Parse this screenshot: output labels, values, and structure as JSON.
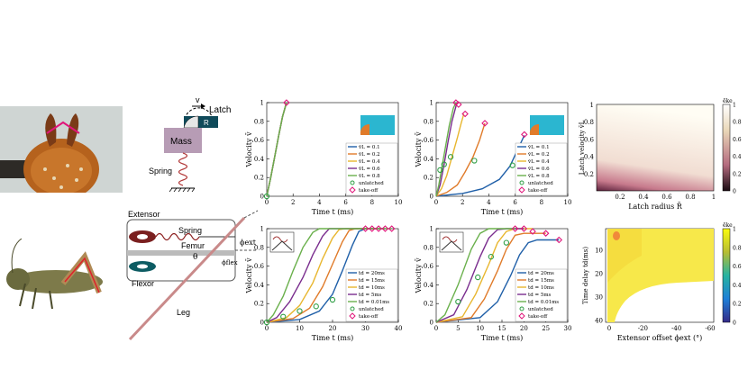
{
  "schematic_top": {
    "latch_label": "Latch",
    "v_label": "v",
    "r_label": "R",
    "mass_label": "Mass",
    "spring_label": "Spring"
  },
  "schematic_bottom": {
    "extensor_label": "Extensor",
    "spring_label": "Spring",
    "femur_label": "Femur",
    "flexor_label": "Flexor",
    "leg_label": "Leg",
    "theta_label": "θ",
    "phi_ext_label": "ϕext",
    "phi_flex_label": "ϕflex"
  },
  "colors": {
    "blue": "#1f5fa8",
    "orange": "#e07b2a",
    "yellow": "#e8b62e",
    "purple": "#7a2d8e",
    "green": "#6ab04c",
    "marker_green": "#2e9e44",
    "marker_pink": "#e0167a",
    "cyan": "#2bb6d0"
  },
  "chart_data": [
    {
      "id": "top1",
      "type": "line",
      "ylabel": "Velocity v̄",
      "xlabel": "Time t (ms)",
      "xlim": [
        0,
        10
      ],
      "ylim": [
        0,
        1
      ],
      "xticks": [
        "0",
        "2",
        "4",
        "6",
        "8",
        "10"
      ],
      "yticks": [
        "0",
        "0.2",
        "0.4",
        "0.6",
        "0.8",
        "1"
      ],
      "series": [
        {
          "name": "v̄L = 0.1",
          "color": "#1f5fa8",
          "points": [
            [
              0,
              0
            ],
            [
              0.3,
              0.2
            ],
            [
              0.6,
              0.42
            ],
            [
              0.9,
              0.64
            ],
            [
              1.2,
              0.85
            ],
            [
              1.5,
              1
            ]
          ]
        },
        {
          "name": "v̄L = 0.2",
          "color": "#e07b2a",
          "points": [
            [
              0,
              0
            ],
            [
              0.3,
              0.2
            ],
            [
              0.6,
              0.42
            ],
            [
              0.9,
              0.64
            ],
            [
              1.2,
              0.85
            ],
            [
              1.5,
              1
            ]
          ]
        },
        {
          "name": "v̄L = 0.4",
          "color": "#e8b62e",
          "points": [
            [
              0,
              0
            ],
            [
              0.3,
              0.2
            ],
            [
              0.6,
              0.42
            ],
            [
              0.9,
              0.64
            ],
            [
              1.2,
              0.85
            ],
            [
              1.5,
              1
            ]
          ]
        },
        {
          "name": "v̄L = 0.6",
          "color": "#7a2d8e",
          "points": [
            [
              0,
              0
            ],
            [
              0.3,
              0.2
            ],
            [
              0.6,
              0.42
            ],
            [
              0.9,
              0.64
            ],
            [
              1.2,
              0.85
            ],
            [
              1.5,
              1
            ]
          ]
        },
        {
          "name": "v̄L = 0.8",
          "color": "#6ab04c",
          "points": [
            [
              0,
              0
            ],
            [
              0.3,
              0.2
            ],
            [
              0.6,
              0.42
            ],
            [
              0.9,
              0.64
            ],
            [
              1.2,
              0.85
            ],
            [
              1.5,
              1
            ]
          ]
        }
      ],
      "unlatched": [
        [
          0,
          0
        ]
      ],
      "takeoff": [
        [
          1.5,
          1
        ]
      ],
      "legend_extra": [
        "unlatched",
        "take-off"
      ]
    },
    {
      "id": "top2",
      "type": "line",
      "ylabel": "Velocity v̄",
      "xlabel": "Time t (ms)",
      "xlim": [
        0,
        10
      ],
      "ylim": [
        0,
        1
      ],
      "xticks": [
        "0",
        "2",
        "4",
        "6",
        "8",
        "10"
      ],
      "yticks": [
        "0",
        "0.2",
        "0.4",
        "0.6",
        "0.8",
        "1"
      ],
      "series": [
        {
          "name": "v̄L = 0.1",
          "color": "#1f5fa8",
          "points": [
            [
              0,
              0
            ],
            [
              2,
              0.03
            ],
            [
              3.5,
              0.08
            ],
            [
              4.8,
              0.18
            ],
            [
              5.6,
              0.32
            ],
            [
              6.2,
              0.5
            ],
            [
              6.7,
              0.65
            ]
          ]
        },
        {
          "name": "v̄L = 0.2",
          "color": "#e07b2a",
          "points": [
            [
              0,
              0
            ],
            [
              0.8,
              0.04
            ],
            [
              1.6,
              0.12
            ],
            [
              2.2,
              0.26
            ],
            [
              2.8,
              0.42
            ],
            [
              3.3,
              0.6
            ],
            [
              3.7,
              0.78
            ]
          ]
        },
        {
          "name": "v̄L = 0.4",
          "color": "#e8b62e",
          "points": [
            [
              0,
              0
            ],
            [
              0.4,
              0.08
            ],
            [
              0.8,
              0.22
            ],
            [
              1.2,
              0.42
            ],
            [
              1.6,
              0.62
            ],
            [
              1.9,
              0.78
            ],
            [
              2.1,
              0.88
            ]
          ]
        },
        {
          "name": "v̄L = 0.6",
          "color": "#7a2d8e",
          "points": [
            [
              0,
              0
            ],
            [
              0.3,
              0.12
            ],
            [
              0.6,
              0.34
            ],
            [
              0.9,
              0.58
            ],
            [
              1.2,
              0.8
            ],
            [
              1.5,
              0.96
            ],
            [
              1.6,
              1
            ]
          ]
        },
        {
          "name": "v̄L = 0.8",
          "color": "#6ab04c",
          "points": [
            [
              0,
              0
            ],
            [
              0.2,
              0.12
            ],
            [
              0.4,
              0.28
            ],
            [
              0.7,
              0.52
            ],
            [
              1,
              0.76
            ],
            [
              1.3,
              0.94
            ],
            [
              1.5,
              1
            ]
          ]
        }
      ],
      "unlatched": [
        [
          0.3,
          0.28
        ],
        [
          0.6,
          0.34
        ],
        [
          1.1,
          0.42
        ],
        [
          2.9,
          0.38
        ],
        [
          5.8,
          0.33
        ]
      ],
      "takeoff": [
        [
          1.5,
          1
        ],
        [
          1.7,
          0.98
        ],
        [
          2.2,
          0.88
        ],
        [
          3.7,
          0.78
        ],
        [
          6.7,
          0.66
        ]
      ],
      "legend_extra": [
        "unlatched",
        "take-off"
      ]
    },
    {
      "id": "bot1",
      "type": "line",
      "ylabel": "Velocity v̄",
      "xlabel": "Time t (ms)",
      "xlim": [
        0,
        40
      ],
      "ylim": [
        0,
        1
      ],
      "xticks": [
        "0",
        "10",
        "20",
        "30",
        "40"
      ],
      "yticks": [
        "0",
        "0.2",
        "0.4",
        "0.6",
        "0.8",
        "1"
      ],
      "series": [
        {
          "name": "td = 20ms",
          "color": "#1f5fa8",
          "points": [
            [
              0,
              0
            ],
            [
              10,
              0.03
            ],
            [
              16,
              0.12
            ],
            [
              20,
              0.3
            ],
            [
              23,
              0.55
            ],
            [
              26,
              0.82
            ],
            [
              28,
              0.97
            ],
            [
              30,
              1
            ],
            [
              32,
              1
            ]
          ]
        },
        {
          "name": "td = 15ms",
          "color": "#e07b2a",
          "points": [
            [
              0,
              0
            ],
            [
              8,
              0.04
            ],
            [
              13,
              0.15
            ],
            [
              17,
              0.38
            ],
            [
              20,
              0.62
            ],
            [
              23,
              0.86
            ],
            [
              25,
              0.98
            ],
            [
              27,
              1
            ],
            [
              33,
              1
            ]
          ]
        },
        {
          "name": "td = 10ms",
          "color": "#e8b62e",
          "points": [
            [
              0,
              0
            ],
            [
              6,
              0.05
            ],
            [
              10,
              0.18
            ],
            [
              14,
              0.42
            ],
            [
              17,
              0.68
            ],
            [
              20,
              0.9
            ],
            [
              22,
              0.99
            ],
            [
              24,
              1
            ],
            [
              35,
              1
            ]
          ]
        },
        {
          "name": "td = 5ms",
          "color": "#7a2d8e",
          "points": [
            [
              0,
              0
            ],
            [
              3,
              0.05
            ],
            [
              7,
              0.22
            ],
            [
              11,
              0.48
            ],
            [
              14,
              0.72
            ],
            [
              17,
              0.92
            ],
            [
              19,
              1
            ],
            [
              21,
              1
            ],
            [
              36,
              1
            ]
          ]
        },
        {
          "name": "td = 0.01ms",
          "color": "#6ab04c",
          "points": [
            [
              0,
              0
            ],
            [
              2,
              0.08
            ],
            [
              5,
              0.28
            ],
            [
              8,
              0.55
            ],
            [
              11,
              0.8
            ],
            [
              14,
              0.96
            ],
            [
              16,
              1
            ],
            [
              38,
              1
            ]
          ]
        }
      ],
      "unlatched": [
        [
          0,
          0
        ],
        [
          5,
          0.06
        ],
        [
          10,
          0.12
        ],
        [
          15,
          0.17
        ],
        [
          20,
          0.24
        ]
      ],
      "takeoff": [
        [
          30,
          1
        ],
        [
          32,
          1
        ],
        [
          34,
          1
        ],
        [
          36,
          1
        ],
        [
          38,
          1
        ]
      ],
      "legend_extra": [
        "unlatched",
        "take-off"
      ]
    },
    {
      "id": "bot2",
      "type": "line",
      "ylabel": "Velocity v̄",
      "xlabel": "Time t (ms)",
      "xlim": [
        0,
        30
      ],
      "ylim": [
        0,
        1
      ],
      "xticks": [
        "0",
        "5",
        "10",
        "15",
        "20",
        "25",
        "30"
      ],
      "yticks": [
        "0",
        "0.2",
        "0.4",
        "0.6",
        "0.8",
        "1"
      ],
      "series": [
        {
          "name": "td = 20ms",
          "color": "#1f5fa8",
          "points": [
            [
              0,
              0
            ],
            [
              10,
              0.05
            ],
            [
              14,
              0.22
            ],
            [
              17,
              0.5
            ],
            [
              19,
              0.72
            ],
            [
              21,
              0.85
            ],
            [
              23,
              0.88
            ],
            [
              28,
              0.88
            ]
          ]
        },
        {
          "name": "td = 15ms",
          "color": "#e07b2a",
          "points": [
            [
              0,
              0
            ],
            [
              8,
              0.05
            ],
            [
              11,
              0.25
            ],
            [
              14,
              0.55
            ],
            [
              16,
              0.78
            ],
            [
              18,
              0.93
            ],
            [
              20,
              0.95
            ],
            [
              25,
              0.95
            ]
          ]
        },
        {
          "name": "td = 10ms",
          "color": "#e8b62e",
          "points": [
            [
              0,
              0
            ],
            [
              6,
              0.06
            ],
            [
              9,
              0.3
            ],
            [
              12,
              0.62
            ],
            [
              14,
              0.85
            ],
            [
              16,
              0.97
            ],
            [
              18,
              1
            ],
            [
              22,
              1
            ]
          ]
        },
        {
          "name": "td = 5ms",
          "color": "#7a2d8e",
          "points": [
            [
              0,
              0
            ],
            [
              4,
              0.08
            ],
            [
              7,
              0.35
            ],
            [
              10,
              0.7
            ],
            [
              12,
              0.9
            ],
            [
              14,
              0.99
            ],
            [
              16,
              1
            ],
            [
              20,
              1
            ]
          ]
        },
        {
          "name": "td = 0.01ms",
          "color": "#6ab04c",
          "points": [
            [
              0,
              0
            ],
            [
              2,
              0.08
            ],
            [
              5,
              0.4
            ],
            [
              8,
              0.78
            ],
            [
              10,
              0.95
            ],
            [
              12,
              1
            ],
            [
              18,
              1
            ]
          ]
        }
      ],
      "unlatched": [
        [
          5,
          0.22
        ],
        [
          9.5,
          0.48
        ],
        [
          12.5,
          0.7
        ],
        [
          16,
          0.85
        ]
      ],
      "takeoff": [
        [
          18,
          1
        ],
        [
          20,
          1
        ],
        [
          22,
          0.97
        ],
        [
          25,
          0.95
        ],
        [
          28,
          0.88
        ]
      ],
      "legend_extra": [
        "unlatched",
        "take-off"
      ]
    },
    {
      "id": "heat1",
      "type": "heatmap",
      "ylabel": "Latch velocity v̄L",
      "xlabel": "Latch radius R̄",
      "colorbar_label": "ēke",
      "xticks": [
        "0.2",
        "0.4",
        "0.6",
        "0.8",
        "1"
      ],
      "yticks": [
        "0.2",
        "0.4",
        "0.6",
        "0.8",
        "1"
      ],
      "colorbar_ticks": [
        "0",
        "0.2",
        "0.4",
        "0.6",
        "0.8",
        "1"
      ],
      "colormap": "pink-to-white"
    },
    {
      "id": "heat2",
      "type": "heatmap",
      "ylabel": "Time delay td(ms)",
      "xlabel": "Extensor offset ϕext (°)",
      "colorbar_label": "ēke",
      "xticks": [
        "0",
        "-20",
        "-40",
        "-60"
      ],
      "yticks": [
        "10",
        "20",
        "30",
        "40"
      ],
      "colorbar_ticks": [
        "0",
        "0.2",
        "0.4",
        "0.6",
        "0.8",
        "1"
      ],
      "colormap": "parula"
    }
  ],
  "legend_top": {
    "rows": [
      "v̄L = 0.1",
      "v̄L = 0.2",
      "v̄L = 0.4",
      "v̄L = 0.6",
      "v̄L = 0.8",
      "unlatched",
      "take-off"
    ]
  },
  "legend_bot": {
    "rows": [
      "td = 20ms",
      "td = 15ms",
      "td = 10ms",
      "td = 5ms",
      "td = 0.01ms",
      "unlatched",
      "take-off"
    ]
  }
}
